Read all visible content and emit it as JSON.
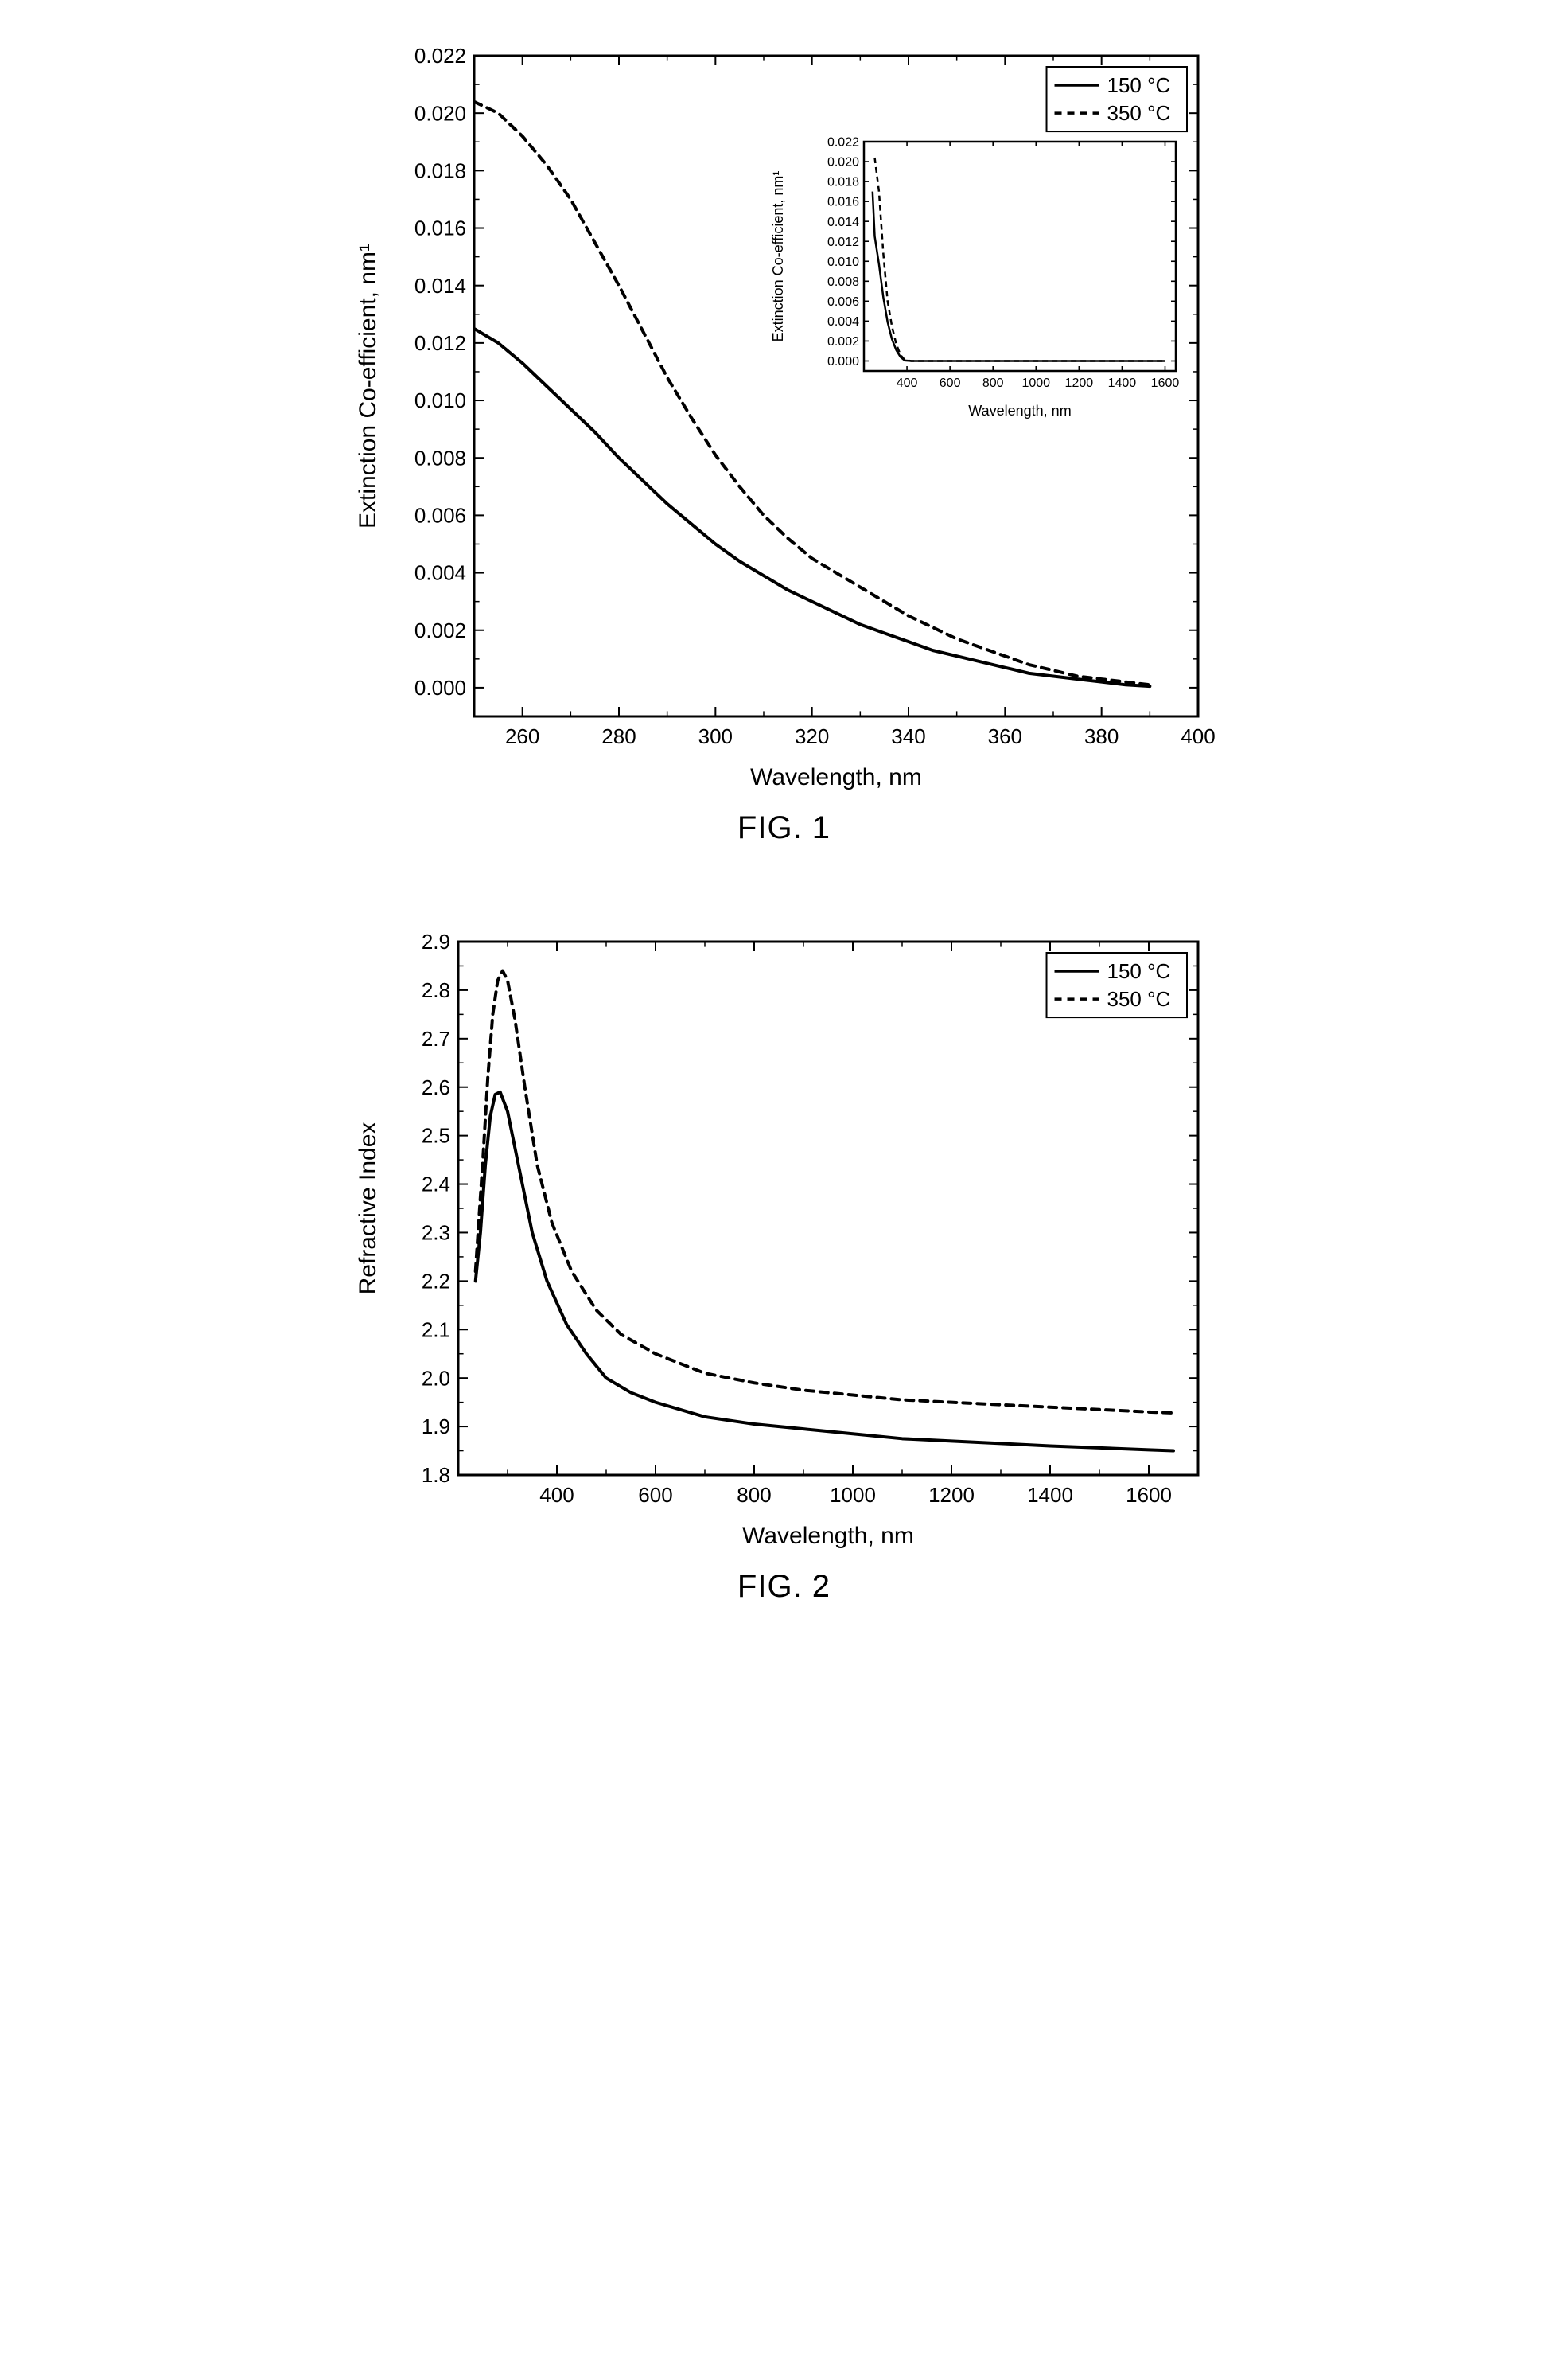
{
  "fig1": {
    "caption": "FIG. 1",
    "type": "line",
    "xlabel": "Wavelength, nm",
    "ylabel": "Extinction Co-efficient, nm¹",
    "label_fontsize": 30,
    "tick_fontsize": 26,
    "xlim": [
      250,
      400
    ],
    "ylim": [
      -0.001,
      0.022
    ],
    "xticks": [
      260,
      280,
      300,
      320,
      340,
      360,
      380,
      400
    ],
    "yticks": [
      0.0,
      0.002,
      0.004,
      0.006,
      0.008,
      0.01,
      0.012,
      0.014,
      0.016,
      0.018,
      0.02,
      0.022
    ],
    "background_color": "#ffffff",
    "axis_color": "#000000",
    "line_width_axis": 3,
    "legend": {
      "position": "top-right",
      "items": [
        {
          "label": "150 °C",
          "style": "solid",
          "color": "#000000"
        },
        {
          "label": "350 °C",
          "style": "dashed",
          "color": "#000000"
        }
      ],
      "fontsize": 26
    },
    "series": [
      {
        "name": "150C",
        "color": "#000000",
        "style": "solid",
        "line_width": 4,
        "data": [
          [
            250,
            0.0125
          ],
          [
            255,
            0.012
          ],
          [
            260,
            0.0113
          ],
          [
            265,
            0.0105
          ],
          [
            270,
            0.0097
          ],
          [
            275,
            0.0089
          ],
          [
            280,
            0.008
          ],
          [
            285,
            0.0072
          ],
          [
            290,
            0.0064
          ],
          [
            295,
            0.0057
          ],
          [
            300,
            0.005
          ],
          [
            305,
            0.0044
          ],
          [
            310,
            0.0039
          ],
          [
            315,
            0.0034
          ],
          [
            320,
            0.003
          ],
          [
            325,
            0.0026
          ],
          [
            330,
            0.0022
          ],
          [
            335,
            0.0019
          ],
          [
            340,
            0.0016
          ],
          [
            345,
            0.0013
          ],
          [
            350,
            0.0011
          ],
          [
            355,
            0.0009
          ],
          [
            360,
            0.0007
          ],
          [
            365,
            0.0005
          ],
          [
            370,
            0.0004
          ],
          [
            375,
            0.0003
          ],
          [
            380,
            0.0002
          ],
          [
            385,
            0.0001
          ],
          [
            390,
            5e-05
          ]
        ]
      },
      {
        "name": "350C",
        "color": "#000000",
        "style": "dashed",
        "line_width": 4,
        "dash": "10,8",
        "data": [
          [
            250,
            0.0204
          ],
          [
            255,
            0.02
          ],
          [
            260,
            0.0192
          ],
          [
            265,
            0.0182
          ],
          [
            270,
            0.017
          ],
          [
            275,
            0.0155
          ],
          [
            280,
            0.014
          ],
          [
            285,
            0.0124
          ],
          [
            290,
            0.0108
          ],
          [
            295,
            0.0094
          ],
          [
            300,
            0.0081
          ],
          [
            305,
            0.007
          ],
          [
            310,
            0.006
          ],
          [
            315,
            0.0052
          ],
          [
            320,
            0.0045
          ],
          [
            325,
            0.004
          ],
          [
            330,
            0.0035
          ],
          [
            335,
            0.003
          ],
          [
            340,
            0.0025
          ],
          [
            345,
            0.0021
          ],
          [
            350,
            0.0017
          ],
          [
            355,
            0.0014
          ],
          [
            360,
            0.0011
          ],
          [
            365,
            0.0008
          ],
          [
            370,
            0.0006
          ],
          [
            375,
            0.0004
          ],
          [
            380,
            0.0003
          ],
          [
            385,
            0.0002
          ],
          [
            390,
            0.0001
          ]
        ]
      }
    ],
    "inset": {
      "xlabel": "Wavelength, nm",
      "ylabel": "Extinction Co-efficient, nm¹",
      "label_fontsize": 18,
      "tick_fontsize": 16,
      "xlim": [
        200,
        1650
      ],
      "ylim": [
        -0.001,
        0.022
      ],
      "xticks": [
        400,
        600,
        800,
        1000,
        1200,
        1400,
        1600
      ],
      "yticks": [
        0.0,
        0.002,
        0.004,
        0.006,
        0.008,
        0.01,
        0.012,
        0.014,
        0.016,
        0.018,
        0.02,
        0.022
      ],
      "series": [
        {
          "name": "150C",
          "color": "#000000",
          "style": "solid",
          "line_width": 2.5,
          "data": [
            [
              240,
              0.017
            ],
            [
              250,
              0.0125
            ],
            [
              270,
              0.0097
            ],
            [
              290,
              0.0064
            ],
            [
              310,
              0.0039
            ],
            [
              330,
              0.0022
            ],
            [
              350,
              0.0011
            ],
            [
              370,
              0.0004
            ],
            [
              390,
              5e-05
            ],
            [
              420,
              0
            ],
            [
              600,
              0
            ],
            [
              800,
              0
            ],
            [
              1000,
              0
            ],
            [
              1200,
              0
            ],
            [
              1400,
              0
            ],
            [
              1600,
              0
            ]
          ]
        },
        {
          "name": "350C",
          "color": "#000000",
          "style": "dashed",
          "line_width": 2.5,
          "dash": "7,5",
          "data": [
            [
              250,
              0.0204
            ],
            [
              270,
              0.017
            ],
            [
              290,
              0.0108
            ],
            [
              310,
              0.006
            ],
            [
              330,
              0.0035
            ],
            [
              350,
              0.0017
            ],
            [
              370,
              0.0006
            ],
            [
              390,
              0.0001
            ],
            [
              420,
              0
            ],
            [
              600,
              0
            ],
            [
              800,
              0
            ],
            [
              1000,
              0
            ],
            [
              1200,
              0
            ],
            [
              1400,
              0
            ],
            [
              1600,
              0
            ]
          ]
        }
      ]
    }
  },
  "fig2": {
    "caption": "FIG. 2",
    "type": "line",
    "xlabel": "Wavelength, nm",
    "ylabel": "Refractive Index",
    "label_fontsize": 30,
    "tick_fontsize": 26,
    "xlim": [
      200,
      1700
    ],
    "ylim": [
      1.8,
      2.9
    ],
    "xticks": [
      400,
      600,
      800,
      1000,
      1200,
      1400,
      1600
    ],
    "yticks": [
      1.8,
      1.9,
      2.0,
      2.1,
      2.2,
      2.3,
      2.4,
      2.5,
      2.6,
      2.7,
      2.8,
      2.9
    ],
    "background_color": "#ffffff",
    "axis_color": "#000000",
    "line_width_axis": 3,
    "legend": {
      "position": "top-right",
      "items": [
        {
          "label": "150 °C",
          "style": "solid",
          "color": "#000000"
        },
        {
          "label": "350 °C",
          "style": "dashed",
          "color": "#000000"
        }
      ],
      "fontsize": 26
    },
    "series": [
      {
        "name": "150C",
        "color": "#000000",
        "style": "solid",
        "line_width": 4,
        "data": [
          [
            235,
            2.2
          ],
          [
            245,
            2.3
          ],
          [
            255,
            2.44
          ],
          [
            265,
            2.54
          ],
          [
            275,
            2.585
          ],
          [
            285,
            2.59
          ],
          [
            300,
            2.55
          ],
          [
            320,
            2.45
          ],
          [
            350,
            2.3
          ],
          [
            380,
            2.2
          ],
          [
            420,
            2.11
          ],
          [
            460,
            2.05
          ],
          [
            500,
            2.0
          ],
          [
            550,
            1.97
          ],
          [
            600,
            1.95
          ],
          [
            700,
            1.92
          ],
          [
            800,
            1.905
          ],
          [
            900,
            1.895
          ],
          [
            1000,
            1.885
          ],
          [
            1100,
            1.875
          ],
          [
            1200,
            1.87
          ],
          [
            1300,
            1.865
          ],
          [
            1400,
            1.86
          ],
          [
            1500,
            1.856
          ],
          [
            1600,
            1.852
          ],
          [
            1650,
            1.85
          ]
        ]
      },
      {
        "name": "350C",
        "color": "#000000",
        "style": "dashed",
        "line_width": 4,
        "dash": "10,8",
        "data": [
          [
            235,
            2.22
          ],
          [
            250,
            2.45
          ],
          [
            260,
            2.62
          ],
          [
            270,
            2.75
          ],
          [
            280,
            2.82
          ],
          [
            290,
            2.84
          ],
          [
            300,
            2.82
          ],
          [
            315,
            2.74
          ],
          [
            335,
            2.6
          ],
          [
            360,
            2.44
          ],
          [
            390,
            2.32
          ],
          [
            430,
            2.22
          ],
          [
            480,
            2.14
          ],
          [
            530,
            2.09
          ],
          [
            600,
            2.05
          ],
          [
            700,
            2.01
          ],
          [
            800,
            1.99
          ],
          [
            900,
            1.975
          ],
          [
            1000,
            1.965
          ],
          [
            1100,
            1.955
          ],
          [
            1200,
            1.95
          ],
          [
            1300,
            1.945
          ],
          [
            1400,
            1.94
          ],
          [
            1500,
            1.935
          ],
          [
            1600,
            1.93
          ],
          [
            1650,
            1.928
          ]
        ]
      }
    ]
  }
}
